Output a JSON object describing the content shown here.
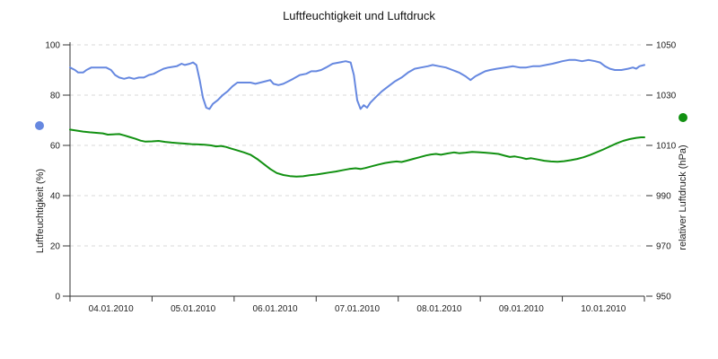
{
  "title": "Luftfeuchtigkeit und Luftdruck",
  "axes": {
    "left_label": "Luftfeuchtigkeit (%)",
    "right_label": "relativer Luftdruck (hPa)"
  },
  "colors": {
    "humidity": "#6688e0",
    "pressure": "#129112",
    "grid": "#d9d9d9",
    "axis": "#333333"
  },
  "chart_data": {
    "type": "line",
    "title": "Luftfeuchtigkeit und Luftdruck",
    "grid": "horizontal-dashed",
    "legend": "colored dots adjacent to rotated axis labels",
    "x_axis": {
      "labels": [
        "04.01.2010",
        "05.01.2010",
        "06.01.2010",
        "07.01.2010",
        "08.01.2010",
        "09.01.2010",
        "10.01.2010"
      ],
      "unit": "date",
      "days_shown": 7,
      "note": "t values in series points are days from start of 04.01.2010"
    },
    "y_left": {
      "label": "Luftfeuchtigkeit (%)",
      "ticks": [
        0,
        20,
        40,
        60,
        80,
        100
      ],
      "range": [
        0,
        100
      ],
      "color": "#6688e0"
    },
    "y_right": {
      "label": "relativer Luftdruck (hPa)",
      "ticks": [
        950,
        970,
        990,
        1010,
        1030,
        1050
      ],
      "range": [
        950,
        1050
      ],
      "color": "#129112"
    },
    "series": [
      {
        "name": "Luftfeuchtigkeit",
        "unit": "%",
        "axis": "left",
        "color": "#6688e0",
        "points": [
          [
            0.0,
            91
          ],
          [
            0.06,
            90
          ],
          [
            0.1,
            89
          ],
          [
            0.16,
            89
          ],
          [
            0.2,
            90
          ],
          [
            0.26,
            91
          ],
          [
            0.36,
            91
          ],
          [
            0.44,
            91
          ],
          [
            0.5,
            90
          ],
          [
            0.55,
            88
          ],
          [
            0.6,
            87
          ],
          [
            0.66,
            86.5
          ],
          [
            0.72,
            87
          ],
          [
            0.78,
            86.5
          ],
          [
            0.84,
            87
          ],
          [
            0.9,
            87
          ],
          [
            0.96,
            88
          ],
          [
            1.02,
            88.5
          ],
          [
            1.08,
            89.5
          ],
          [
            1.14,
            90.5
          ],
          [
            1.2,
            91
          ],
          [
            1.3,
            91.5
          ],
          [
            1.36,
            92.5
          ],
          [
            1.4,
            92
          ],
          [
            1.46,
            92.5
          ],
          [
            1.5,
            93
          ],
          [
            1.54,
            92
          ],
          [
            1.58,
            86
          ],
          [
            1.62,
            79
          ],
          [
            1.66,
            75
          ],
          [
            1.7,
            74.5
          ],
          [
            1.74,
            76.5
          ],
          [
            1.8,
            78
          ],
          [
            1.86,
            80
          ],
          [
            1.92,
            81.5
          ],
          [
            1.98,
            83.5
          ],
          [
            2.04,
            85
          ],
          [
            2.12,
            85
          ],
          [
            2.2,
            85
          ],
          [
            2.26,
            84.5
          ],
          [
            2.32,
            85
          ],
          [
            2.38,
            85.5
          ],
          [
            2.44,
            86
          ],
          [
            2.48,
            84.5
          ],
          [
            2.54,
            84
          ],
          [
            2.6,
            84.5
          ],
          [
            2.66,
            85.5
          ],
          [
            2.72,
            86.5
          ],
          [
            2.8,
            88
          ],
          [
            2.88,
            88.5
          ],
          [
            2.94,
            89.5
          ],
          [
            3.0,
            89.5
          ],
          [
            3.06,
            90
          ],
          [
            3.12,
            91
          ],
          [
            3.2,
            92.5
          ],
          [
            3.28,
            93
          ],
          [
            3.36,
            93.5
          ],
          [
            3.42,
            93
          ],
          [
            3.46,
            88
          ],
          [
            3.5,
            78
          ],
          [
            3.54,
            74.5
          ],
          [
            3.58,
            76
          ],
          [
            3.62,
            75
          ],
          [
            3.66,
            77
          ],
          [
            3.72,
            79
          ],
          [
            3.8,
            81.5
          ],
          [
            3.88,
            83.5
          ],
          [
            3.96,
            85.5
          ],
          [
            4.04,
            87
          ],
          [
            4.12,
            89
          ],
          [
            4.2,
            90.5
          ],
          [
            4.28,
            91
          ],
          [
            4.36,
            91.5
          ],
          [
            4.42,
            92
          ],
          [
            4.5,
            91.5
          ],
          [
            4.58,
            91
          ],
          [
            4.66,
            90
          ],
          [
            4.74,
            89
          ],
          [
            4.82,
            87.5
          ],
          [
            4.88,
            86
          ],
          [
            4.94,
            87.5
          ],
          [
            5.0,
            88.5
          ],
          [
            5.06,
            89.5
          ],
          [
            5.12,
            90
          ],
          [
            5.2,
            90.5
          ],
          [
            5.3,
            91
          ],
          [
            5.4,
            91.5
          ],
          [
            5.48,
            91
          ],
          [
            5.56,
            91
          ],
          [
            5.64,
            91.5
          ],
          [
            5.72,
            91.5
          ],
          [
            5.8,
            92
          ],
          [
            5.88,
            92.5
          ],
          [
            5.94,
            93
          ],
          [
            6.0,
            93.5
          ],
          [
            6.08,
            94
          ],
          [
            6.16,
            94
          ],
          [
            6.24,
            93.5
          ],
          [
            6.32,
            94
          ],
          [
            6.4,
            93.5
          ],
          [
            6.46,
            93
          ],
          [
            6.52,
            91.5
          ],
          [
            6.58,
            90.5
          ],
          [
            6.64,
            90
          ],
          [
            6.72,
            90
          ],
          [
            6.8,
            90.5
          ],
          [
            6.86,
            91
          ],
          [
            6.9,
            90.5
          ],
          [
            6.94,
            91.5
          ],
          [
            7.0,
            92
          ]
        ]
      },
      {
        "name": "relativer Luftdruck",
        "unit": "hPa",
        "axis": "right",
        "color": "#129112",
        "points": [
          [
            0.0,
            1016.3
          ],
          [
            0.08,
            1015.9
          ],
          [
            0.16,
            1015.5
          ],
          [
            0.24,
            1015.2
          ],
          [
            0.32,
            1015.0
          ],
          [
            0.4,
            1014.8
          ],
          [
            0.46,
            1014.3
          ],
          [
            0.52,
            1014.4
          ],
          [
            0.6,
            1014.5
          ],
          [
            0.66,
            1014.0
          ],
          [
            0.72,
            1013.4
          ],
          [
            0.8,
            1012.6
          ],
          [
            0.86,
            1011.9
          ],
          [
            0.92,
            1011.5
          ],
          [
            1.0,
            1011.6
          ],
          [
            1.08,
            1011.8
          ],
          [
            1.16,
            1011.4
          ],
          [
            1.24,
            1011.1
          ],
          [
            1.32,
            1010.9
          ],
          [
            1.4,
            1010.7
          ],
          [
            1.48,
            1010.5
          ],
          [
            1.56,
            1010.4
          ],
          [
            1.64,
            1010.3
          ],
          [
            1.72,
            1010.0
          ],
          [
            1.78,
            1009.6
          ],
          [
            1.84,
            1009.8
          ],
          [
            1.9,
            1009.4
          ],
          [
            1.96,
            1008.8
          ],
          [
            2.04,
            1008.0
          ],
          [
            2.12,
            1007.2
          ],
          [
            2.2,
            1006.3
          ],
          [
            2.28,
            1004.6
          ],
          [
            2.36,
            1002.6
          ],
          [
            2.44,
            1000.6
          ],
          [
            2.52,
            999.0
          ],
          [
            2.6,
            998.2
          ],
          [
            2.68,
            997.8
          ],
          [
            2.76,
            997.6
          ],
          [
            2.84,
            997.7
          ],
          [
            2.92,
            998.1
          ],
          [
            3.0,
            998.4
          ],
          [
            3.08,
            998.8
          ],
          [
            3.16,
            999.2
          ],
          [
            3.24,
            999.6
          ],
          [
            3.32,
            1000.1
          ],
          [
            3.4,
            1000.6
          ],
          [
            3.48,
            1000.9
          ],
          [
            3.54,
            1000.6
          ],
          [
            3.6,
            1001.0
          ],
          [
            3.68,
            1001.7
          ],
          [
            3.76,
            1002.4
          ],
          [
            3.84,
            1003.0
          ],
          [
            3.92,
            1003.4
          ],
          [
            3.98,
            1003.6
          ],
          [
            4.04,
            1003.4
          ],
          [
            4.1,
            1003.9
          ],
          [
            4.18,
            1004.6
          ],
          [
            4.26,
            1005.3
          ],
          [
            4.34,
            1006.0
          ],
          [
            4.4,
            1006.4
          ],
          [
            4.46,
            1006.6
          ],
          [
            4.52,
            1006.3
          ],
          [
            4.6,
            1006.8
          ],
          [
            4.68,
            1007.2
          ],
          [
            4.74,
            1006.9
          ],
          [
            4.82,
            1007.1
          ],
          [
            4.9,
            1007.4
          ],
          [
            4.98,
            1007.3
          ],
          [
            5.06,
            1007.1
          ],
          [
            5.14,
            1006.9
          ],
          [
            5.22,
            1006.6
          ],
          [
            5.3,
            1005.9
          ],
          [
            5.36,
            1005.4
          ],
          [
            5.42,
            1005.6
          ],
          [
            5.5,
            1005.1
          ],
          [
            5.56,
            1004.6
          ],
          [
            5.62,
            1004.9
          ],
          [
            5.7,
            1004.4
          ],
          [
            5.78,
            1003.9
          ],
          [
            5.86,
            1003.6
          ],
          [
            5.94,
            1003.5
          ],
          [
            6.02,
            1003.7
          ],
          [
            6.1,
            1004.1
          ],
          [
            6.18,
            1004.6
          ],
          [
            6.26,
            1005.3
          ],
          [
            6.34,
            1006.2
          ],
          [
            6.42,
            1007.3
          ],
          [
            6.5,
            1008.4
          ],
          [
            6.58,
            1009.6
          ],
          [
            6.66,
            1010.8
          ],
          [
            6.74,
            1011.8
          ],
          [
            6.82,
            1012.5
          ],
          [
            6.9,
            1013.0
          ],
          [
            6.96,
            1013.2
          ],
          [
            7.0,
            1013.2
          ]
        ]
      }
    ]
  }
}
